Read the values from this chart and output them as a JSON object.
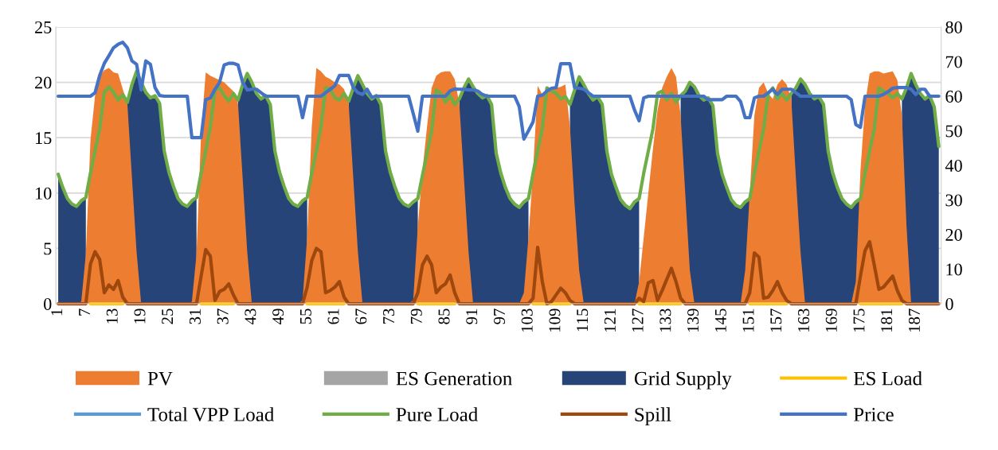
{
  "chart_data": {
    "type": "area",
    "categories": [
      "1",
      null,
      null,
      null,
      null,
      null,
      "7",
      null,
      null,
      null,
      null,
      null,
      "13",
      null,
      null,
      null,
      null,
      null,
      "19",
      null,
      null,
      null,
      null,
      null,
      "25",
      null,
      null,
      null,
      null,
      null,
      "31",
      null,
      null,
      null,
      null,
      null,
      "37",
      null,
      null,
      null,
      null,
      null,
      "43",
      null,
      null,
      null,
      null,
      null,
      "49",
      null,
      null,
      null,
      null,
      null,
      "55",
      null,
      null,
      null,
      null,
      null,
      "61",
      null,
      null,
      null,
      null,
      null,
      "67",
      null,
      null,
      null,
      null,
      null,
      "73",
      null,
      null,
      null,
      null,
      null,
      "79",
      null,
      null,
      null,
      null,
      null,
      "85",
      null,
      null,
      null,
      null,
      null,
      "91",
      null,
      null,
      null,
      null,
      null,
      "97",
      null,
      null,
      null,
      null,
      null,
      "103",
      null,
      null,
      null,
      null,
      null,
      "109",
      null,
      null,
      null,
      null,
      null,
      "115",
      null,
      null,
      null,
      null,
      null,
      "121",
      null,
      null,
      null,
      null,
      null,
      "127",
      null,
      null,
      null,
      null,
      null,
      "133",
      null,
      null,
      null,
      null,
      null,
      "139",
      null,
      null,
      null,
      null,
      null,
      "145",
      null,
      null,
      null,
      null,
      null,
      "151",
      null,
      null,
      null,
      null,
      null,
      "157",
      null,
      null,
      null,
      null,
      null,
      "163",
      null,
      null,
      null,
      null,
      null,
      "169",
      null,
      null,
      null,
      null,
      null,
      "175",
      null,
      null,
      null,
      null,
      null,
      "181",
      null,
      null,
      null,
      null,
      null,
      "187",
      null,
      null,
      null,
      null,
      null
    ],
    "series": [
      {
        "name": "PV",
        "color": "#ed7d31",
        "values": [
          0,
          0,
          0,
          0,
          0,
          0.2,
          4.5,
          14.8,
          18.8,
          20.5,
          21.1,
          21.3,
          20.9,
          20.8,
          19.4,
          18.1,
          11.4,
          4.7,
          0,
          0,
          0,
          0,
          0,
          0,
          0,
          0,
          0,
          0,
          0,
          0.2,
          4.5,
          15.5,
          20.9,
          20.6,
          20.4,
          20.2,
          20.0,
          19.6,
          19.2,
          18.1,
          11.4,
          4.7,
          0,
          0,
          0,
          0,
          0,
          0,
          0,
          0,
          0,
          0,
          0,
          0.3,
          6,
          16,
          21.3,
          21.0,
          20.5,
          20.3,
          20.0,
          19.8,
          19.4,
          18.1,
          11.4,
          4.7,
          0,
          0,
          0,
          0,
          0,
          0,
          0,
          0,
          0,
          0,
          0,
          0.3,
          7,
          12,
          16,
          19.5,
          20.6,
          20.9,
          21.0,
          21.0,
          20.3,
          18.1,
          11.4,
          4.7,
          0,
          0,
          0,
          0,
          0,
          0,
          0,
          0,
          0,
          0,
          0,
          1,
          6,
          12,
          19.7,
          18.9,
          19.2,
          19.3,
          19.5,
          19.6,
          19.8,
          16,
          9,
          3,
          0,
          0,
          0,
          0,
          0,
          0,
          0,
          0,
          0,
          0,
          0,
          0,
          2,
          6,
          10,
          14,
          17.5,
          19.5,
          20.5,
          21.3,
          20.5,
          17,
          10,
          3,
          0,
          0,
          0,
          0,
          0,
          0,
          0,
          0,
          0,
          0,
          0,
          3,
          10,
          17,
          19.5,
          20,
          19,
          18.5,
          19.8,
          20.3,
          19.8,
          18.5,
          11.4,
          4.7,
          0,
          0,
          0,
          0,
          0,
          0,
          0,
          0,
          0,
          0,
          0,
          2,
          12,
          18,
          20.8,
          21.0,
          21.0,
          20.8,
          20.9,
          21.0,
          20.2,
          17,
          7,
          0,
          0,
          0,
          0,
          0,
          0,
          0
        ]
      },
      {
        "name": "ES Generation",
        "color": "#a5a5a5",
        "values": [
          null,
          null,
          null,
          null,
          null,
          null,
          null,
          null,
          null,
          null,
          null,
          null,
          null,
          null,
          null,
          null,
          null,
          null,
          null,
          null,
          null,
          null,
          null,
          null,
          null,
          null,
          null,
          null,
          null,
          null,
          null,
          null,
          null,
          null,
          null,
          null,
          null,
          null,
          null,
          null,
          null,
          null,
          null,
          null,
          null,
          null,
          null,
          null,
          null,
          null,
          null,
          null,
          null,
          null,
          null,
          null,
          null,
          null,
          null,
          null,
          null,
          null,
          null,
          null,
          null,
          null,
          null,
          null,
          null,
          null,
          null,
          null,
          null,
          null,
          null,
          null,
          null,
          null,
          null,
          null,
          null,
          null,
          null,
          null,
          null,
          null,
          null,
          null,
          null,
          null,
          null,
          null,
          null,
          null,
          null,
          null,
          null,
          null,
          null,
          null,
          null,
          null,
          null,
          null,
          null,
          null,
          null,
          null,
          null,
          null,
          null,
          null,
          null,
          null,
          null,
          null,
          null,
          null,
          null,
          null,
          null,
          null,
          null,
          null,
          null,
          null,
          null,
          null,
          null,
          null,
          null,
          null,
          null,
          null,
          null,
          null,
          null,
          null,
          null,
          null,
          null,
          null,
          null,
          null,
          null,
          null,
          null,
          null,
          null,
          null,
          null,
          null,
          null,
          null,
          null,
          null,
          null,
          null,
          null,
          null,
          null,
          null,
          null,
          null,
          null,
          null,
          null,
          null,
          null,
          null,
          null,
          null,
          null,
          null,
          null,
          null,
          null,
          null,
          null,
          null,
          null,
          null,
          null,
          null,
          null,
          null,
          null,
          null,
          null,
          null,
          null,
          null
        ]
      },
      {
        "name": "Grid Supply",
        "color": "#264478",
        "values": [
          11.7,
          10.5,
          9.5,
          9.0,
          8.8,
          9.3,
          9.6,
          null,
          null,
          null,
          null,
          null,
          null,
          null,
          null,
          18.2,
          19.8,
          21.0,
          20.0,
          19.1,
          18.6,
          18.8,
          18.1,
          13.8,
          11.9,
          10.6,
          9.5,
          9.0,
          8.8,
          9.3,
          9.6,
          null,
          null,
          null,
          null,
          null,
          null,
          null,
          null,
          18.4,
          19.8,
          20.8,
          20.0,
          19.0,
          18.5,
          18.8,
          18.0,
          13.8,
          11.9,
          10.6,
          9.5,
          9.0,
          8.8,
          9.3,
          9.6,
          null,
          null,
          null,
          null,
          null,
          null,
          null,
          null,
          18.3,
          19.5,
          20.6,
          19.8,
          19.0,
          18.5,
          18.8,
          18.0,
          13.8,
          11.9,
          10.6,
          9.5,
          9.0,
          8.8,
          9.2,
          9.5,
          null,
          null,
          null,
          null,
          null,
          null,
          null,
          null,
          18.5,
          19.5,
          20.3,
          19.6,
          19.0,
          18.6,
          18.8,
          18.0,
          13.6,
          11.8,
          10.5,
          9.5,
          9.0,
          8.7,
          9.2,
          9.5,
          null,
          null,
          null,
          null,
          null,
          null,
          null,
          null,
          18.0,
          19.3,
          20.5,
          19.8,
          19.0,
          18.4,
          18.7,
          18.0,
          13.8,
          11.7,
          10.5,
          9.4,
          8.9,
          8.6,
          9.2,
          9.5,
          null,
          null,
          null,
          null,
          null,
          null,
          null,
          null,
          18.8,
          19.2,
          20.0,
          19.6,
          18.8,
          18.4,
          18.6,
          17.9,
          13.6,
          11.7,
          10.5,
          9.4,
          8.9,
          8.7,
          9.2,
          9.5,
          null,
          null,
          null,
          null,
          null,
          null,
          null,
          null,
          19.0,
          19.5,
          20.3,
          19.8,
          19.0,
          18.5,
          18.7,
          18.0,
          13.8,
          11.8,
          10.5,
          9.5,
          9.0,
          8.7,
          9.2,
          9.5,
          null,
          null,
          null,
          null,
          null,
          null,
          null,
          null,
          18.5,
          19.5,
          20.8,
          19.8,
          19.0,
          18.5,
          18.8,
          17.8,
          14.2
        ]
      },
      {
        "name": "ES Load",
        "type": "line",
        "color": "#ffc000",
        "values": [
          null,
          null,
          null,
          null,
          null,
          null,
          null,
          0,
          0,
          0,
          0,
          0,
          0,
          0,
          0,
          null,
          null,
          null,
          null,
          null,
          null,
          null,
          null,
          null,
          null,
          null,
          null,
          null,
          null,
          null,
          null,
          0,
          0,
          0,
          0,
          0,
          0,
          0,
          0,
          null,
          null,
          null,
          null,
          null,
          null,
          null,
          null,
          null,
          null,
          null,
          null,
          null,
          null,
          null,
          0,
          0,
          0,
          0,
          0,
          0,
          0,
          0,
          0,
          null,
          null,
          null,
          null,
          null,
          null,
          null,
          null,
          null,
          null,
          null,
          null,
          null,
          null,
          null,
          0,
          0,
          0,
          0,
          0,
          0,
          0,
          0,
          0,
          null,
          null,
          null,
          null,
          null,
          null,
          null,
          null,
          null,
          null,
          null,
          null,
          null,
          null,
          null,
          null,
          0,
          0,
          0,
          0,
          0,
          0,
          0,
          0,
          0,
          null,
          null,
          null,
          null,
          null,
          null,
          null,
          null,
          null,
          null,
          null,
          null,
          null,
          null,
          0,
          0,
          0,
          0,
          0,
          0,
          0,
          0,
          0,
          0,
          null,
          null,
          null,
          null,
          null,
          null,
          null,
          null,
          null,
          null,
          null,
          null,
          null,
          null,
          0,
          0,
          0,
          0,
          0,
          0,
          0,
          0,
          0,
          null,
          null,
          null,
          null,
          null,
          null,
          null,
          null,
          null,
          null,
          null,
          null,
          null,
          null,
          null,
          0,
          0,
          0,
          0,
          0,
          0,
          0,
          0,
          0,
          0,
          null,
          null,
          null,
          null,
          null,
          null,
          null,
          null
        ]
      },
      {
        "name": "Total VPP Load",
        "type": "line",
        "color": "#5b9bd5",
        "values": [
          null,
          null,
          null,
          null,
          null,
          null,
          null,
          null,
          null,
          null,
          null,
          null,
          null,
          null,
          null,
          null,
          null,
          null,
          null,
          null,
          null,
          null,
          null,
          null,
          null,
          null,
          null,
          null,
          null,
          null,
          null,
          null,
          null,
          null,
          null,
          null,
          null,
          null,
          null,
          null,
          null,
          null,
          null,
          null,
          null,
          null,
          null,
          null,
          null,
          null,
          null,
          null,
          null,
          null,
          null,
          null,
          null,
          null,
          null,
          null,
          null,
          null,
          null,
          null,
          null,
          null,
          null,
          null,
          null,
          null,
          null,
          null,
          null,
          null,
          null,
          null,
          null,
          null,
          null,
          null,
          null,
          null,
          null,
          null,
          null,
          null,
          null,
          null,
          null,
          null,
          null,
          null,
          null,
          null,
          null,
          null,
          null,
          null,
          null,
          null,
          null,
          null,
          null,
          null,
          null,
          null,
          null,
          null,
          null,
          null,
          null,
          null,
          null,
          null,
          null,
          null,
          null,
          null,
          null,
          null,
          null,
          null,
          null,
          null,
          null,
          null,
          null,
          null,
          null,
          null,
          null,
          null,
          null,
          null,
          null,
          null,
          null,
          null,
          null,
          null,
          null,
          null,
          null,
          null,
          null,
          null,
          null,
          null,
          null,
          null,
          null,
          null,
          null,
          null,
          null,
          null,
          null,
          null,
          null,
          null,
          null,
          null,
          null,
          null,
          null,
          null,
          null,
          null,
          null,
          null,
          null,
          null,
          null,
          null,
          null,
          null,
          null,
          null,
          null,
          null,
          null,
          null,
          null,
          null,
          null,
          null,
          null,
          null,
          null,
          null,
          null,
          null
        ]
      },
      {
        "name": "Pure Load",
        "type": "line",
        "color": "#70ad47",
        "values": [
          11.7,
          10.5,
          9.5,
          9.0,
          8.8,
          9.3,
          9.6,
          11.8,
          13.8,
          15.8,
          19.1,
          19.6,
          19.1,
          18.4,
          18.9,
          18.2,
          19.8,
          21.0,
          20.0,
          19.1,
          18.6,
          18.8,
          18.1,
          13.8,
          11.9,
          10.6,
          9.5,
          9.0,
          8.8,
          9.3,
          9.6,
          11.8,
          13.8,
          16.0,
          19.3,
          19.5,
          18.8,
          18.3,
          19.0,
          18.4,
          19.8,
          20.8,
          20.0,
          19.0,
          18.5,
          18.8,
          18.0,
          13.8,
          11.9,
          10.6,
          9.5,
          9.0,
          8.8,
          9.3,
          9.6,
          11.8,
          13.8,
          16.0,
          19.5,
          19.4,
          18.6,
          18.4,
          19.0,
          18.3,
          19.5,
          20.6,
          19.8,
          19.0,
          18.5,
          18.8,
          18.0,
          13.8,
          11.9,
          10.6,
          9.5,
          9.0,
          8.8,
          9.2,
          9.5,
          11.6,
          13.6,
          15.6,
          19.3,
          19.0,
          18.2,
          18.8,
          18.0,
          18.5,
          19.5,
          20.3,
          19.6,
          19.0,
          18.6,
          18.8,
          18.0,
          13.6,
          11.8,
          10.5,
          9.5,
          9.0,
          8.7,
          9.2,
          9.5,
          11.8,
          13.8,
          15.8,
          19.5,
          19.2,
          19.0,
          18.5,
          18.7,
          18.0,
          19.3,
          20.5,
          19.8,
          19.0,
          18.4,
          18.7,
          18.0,
          13.8,
          11.7,
          10.5,
          9.4,
          8.9,
          8.6,
          9.2,
          9.5,
          11.8,
          13.8,
          15.8,
          19.0,
          19.2,
          18.4,
          19.0,
          18.2,
          18.8,
          19.2,
          20.0,
          19.6,
          18.8,
          18.4,
          18.6,
          17.9,
          13.6,
          11.7,
          10.5,
          9.4,
          8.9,
          8.7,
          9.2,
          9.5,
          11.8,
          13.8,
          15.8,
          19.0,
          19.5,
          18.5,
          19.0,
          18.4,
          19.0,
          19.5,
          20.3,
          19.8,
          19.0,
          18.5,
          18.7,
          18.0,
          13.8,
          11.8,
          10.5,
          9.5,
          9.0,
          8.7,
          9.2,
          9.5,
          11.8,
          13.8,
          15.8,
          19.5,
          19.2,
          19.0,
          18.6,
          19.0,
          18.5,
          19.5,
          20.8,
          19.8,
          19.0,
          18.5,
          18.8,
          17.8,
          14.2
        ]
      },
      {
        "name": "Spill",
        "type": "line",
        "color": "#9e480e",
        "values": [
          0,
          0,
          0,
          0,
          0,
          0,
          0,
          3.6,
          4.7,
          4.0,
          1.0,
          1.7,
          1.3,
          2.1,
          0.6,
          0,
          0,
          0,
          0,
          0,
          0,
          0,
          0,
          0,
          0,
          0,
          0,
          0,
          0,
          0,
          0,
          2.5,
          4.9,
          4.3,
          0.3,
          1.1,
          1.3,
          1.8,
          0.8,
          0,
          0,
          0,
          0,
          0,
          0,
          0,
          0,
          0,
          0,
          0,
          0,
          0,
          0,
          0,
          1.5,
          3.9,
          5.0,
          4.7,
          1.0,
          1.2,
          1.5,
          2.0,
          0.6,
          0,
          0,
          0,
          0,
          0,
          0,
          0,
          0,
          0,
          0,
          0,
          0,
          0,
          0,
          0,
          1.0,
          3.5,
          4.3,
          3.5,
          1.0,
          1.5,
          1.8,
          2.6,
          1.0,
          0,
          0,
          0,
          0,
          0,
          0,
          0,
          0,
          0,
          0,
          0,
          0,
          0,
          0,
          0,
          0,
          0.5,
          5.1,
          2.0,
          0,
          0.2,
          0.8,
          1.4,
          1.0,
          0.3,
          0,
          0,
          0,
          0,
          0,
          0,
          0,
          0,
          0,
          0,
          0,
          0,
          0,
          0,
          0.5,
          0.2,
          1.9,
          2.1,
          0.3,
          1.2,
          2.2,
          3.2,
          2.0,
          0.5,
          0,
          0,
          0,
          0,
          0,
          0,
          0,
          0,
          0,
          0,
          0,
          0,
          0,
          0,
          1.0,
          4.6,
          4.2,
          0.5,
          0.6,
          1.2,
          2.0,
          1.0,
          0.3,
          0,
          0,
          0,
          0,
          0,
          0,
          0,
          0,
          0,
          0,
          0,
          0,
          0,
          0,
          0,
          2.5,
          4.8,
          5.6,
          3.5,
          1.3,
          1.5,
          2.0,
          2.5,
          1.2,
          0.3,
          0,
          0,
          0,
          0,
          0,
          0,
          0,
          0
        ]
      },
      {
        "name": "Price",
        "type": "line",
        "axis": "y2",
        "color": "#4472c4",
        "values": [
          60,
          60,
          60,
          60,
          60,
          60,
          60,
          60,
          61,
          66,
          69.5,
          71.7,
          74,
          75,
          75.6,
          74,
          70.2,
          69.2,
          61.8,
          70.2,
          69.2,
          62.5,
          60.2,
          60,
          60,
          60,
          60,
          60,
          60,
          48,
          48,
          48,
          59,
          59.5,
          62,
          64,
          69,
          69.5,
          69.5,
          69,
          64,
          61.8,
          62,
          62,
          61,
          60,
          60,
          60,
          60,
          60,
          60,
          60,
          60,
          53.8,
          60,
          60,
          60,
          60,
          61,
          62,
          63,
          66,
          66,
          66,
          62.5,
          61,
          60.5,
          62,
          59.7,
          60,
          60,
          60,
          60,
          60,
          60,
          60,
          60,
          55,
          49.9,
          60,
          60,
          60,
          60,
          60,
          60,
          61.5,
          62.1,
          62,
          62,
          61.8,
          61.8,
          61.5,
          60.5,
          60,
          60,
          60,
          60,
          60,
          60,
          60,
          57,
          47.6,
          50,
          52.6,
          60,
          60.3,
          61.5,
          62.3,
          62.5,
          69.4,
          69.4,
          69.4,
          62.5,
          62.3,
          62,
          61,
          60,
          60,
          60,
          60,
          60,
          60,
          60,
          60,
          60,
          56,
          52.9,
          59.5,
          60,
          60,
          60,
          60,
          60,
          60,
          60,
          60,
          60,
          60,
          60,
          60,
          60,
          59,
          59,
          59,
          59,
          60,
          60,
          60,
          58.5,
          53.8,
          53.8,
          59.5,
          60,
          60,
          61,
          62,
          60.5,
          62,
          62,
          62,
          61,
          60,
          60,
          60,
          60,
          60,
          60,
          60,
          60,
          60,
          60,
          60,
          59,
          51.8,
          51,
          60,
          60,
          60,
          60,
          60.5,
          61.3,
          62.3,
          62.5,
          62.5,
          62.5,
          62,
          60.5,
          62,
          62,
          60,
          60,
          60
        ]
      }
    ],
    "ylim": [
      0,
      25
    ],
    "yticks": [
      0,
      5,
      10,
      15,
      20,
      25
    ],
    "y2lim": [
      0,
      80
    ],
    "y2ticks": [
      0,
      10,
      20,
      30,
      40,
      50,
      60,
      70,
      80
    ],
    "grid": "y",
    "legend": "bottom"
  }
}
